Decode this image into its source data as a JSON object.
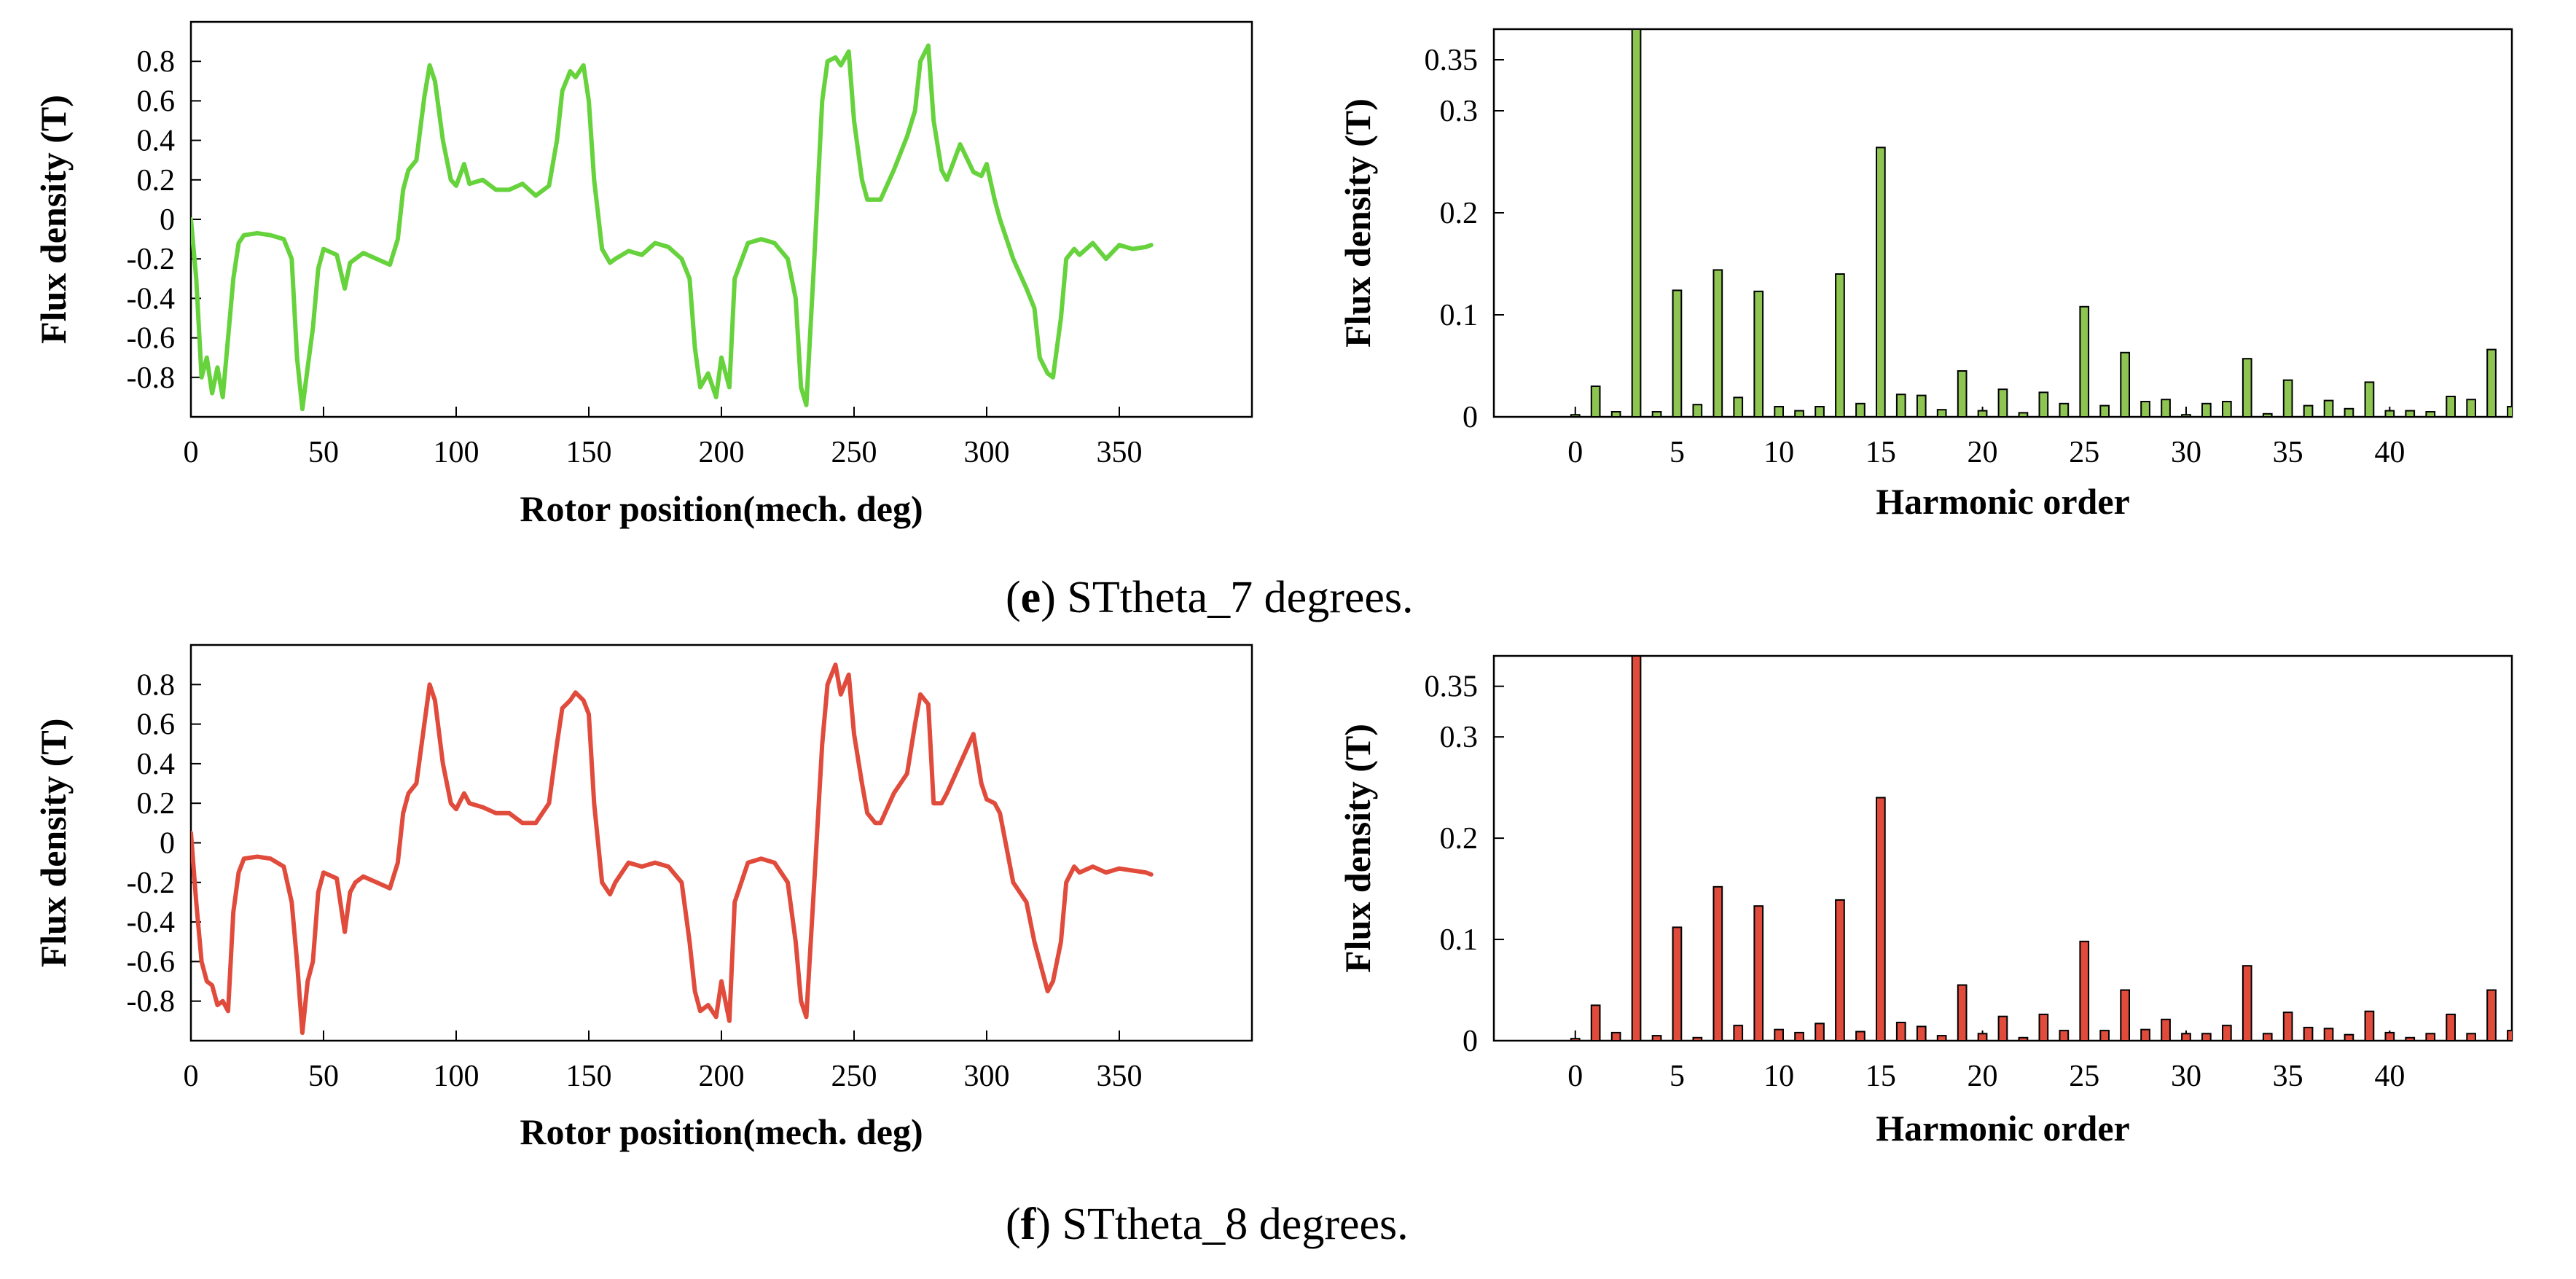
{
  "chart_data": [
    {
      "id": "e-wave",
      "type": "line",
      "title": "",
      "xlabel": "Rotor position(mech. deg)",
      "ylabel": "Flux density (T)",
      "xlim": [
        0,
        400
      ],
      "ylim": [
        -1.0,
        1.0
      ],
      "xticks": [
        0,
        50,
        100,
        150,
        200,
        250,
        300,
        350
      ],
      "yticks": [
        -0.8,
        -0.6,
        -0.4,
        -0.2,
        0,
        0.2,
        0.4,
        0.6,
        0.8
      ],
      "color": "#66d23c",
      "x": [
        0,
        2,
        4,
        6,
        8,
        10,
        12,
        14,
        16,
        18,
        20,
        25,
        30,
        35,
        38,
        40,
        42,
        44,
        46,
        48,
        50,
        55,
        58,
        60,
        62,
        65,
        70,
        75,
        78,
        80,
        82,
        85,
        88,
        90,
        92,
        95,
        98,
        100,
        103,
        105,
        110,
        115,
        120,
        125,
        130,
        135,
        138,
        140,
        143,
        145,
        148,
        150,
        152,
        155,
        158,
        160,
        165,
        170,
        175,
        180,
        185,
        188,
        190,
        192,
        195,
        198,
        200,
        203,
        205,
        210,
        215,
        220,
        225,
        228,
        230,
        232,
        235,
        238,
        240,
        243,
        245,
        248,
        250,
        253,
        255,
        258,
        260,
        265,
        270,
        273,
        275,
        278,
        280,
        283,
        285,
        290,
        295,
        298,
        300,
        303,
        305,
        310,
        315,
        318,
        320,
        323,
        325,
        328,
        330,
        333,
        335,
        340,
        345,
        350,
        355,
        360,
        362
      ],
      "y": [
        0.0,
        -0.3,
        -0.8,
        -0.7,
        -0.88,
        -0.75,
        -0.9,
        -0.6,
        -0.3,
        -0.12,
        -0.08,
        -0.07,
        -0.08,
        -0.1,
        -0.2,
        -0.7,
        -0.96,
        -0.75,
        -0.55,
        -0.25,
        -0.15,
        -0.18,
        -0.35,
        -0.22,
        -0.2,
        -0.17,
        -0.2,
        -0.23,
        -0.1,
        0.15,
        0.25,
        0.3,
        0.62,
        0.78,
        0.7,
        0.4,
        0.2,
        0.17,
        0.28,
        0.18,
        0.2,
        0.15,
        0.15,
        0.18,
        0.12,
        0.17,
        0.4,
        0.65,
        0.75,
        0.72,
        0.78,
        0.6,
        0.2,
        -0.15,
        -0.22,
        -0.2,
        -0.16,
        -0.18,
        -0.12,
        -0.14,
        -0.2,
        -0.3,
        -0.65,
        -0.85,
        -0.78,
        -0.9,
        -0.7,
        -0.85,
        -0.3,
        -0.12,
        -0.1,
        -0.12,
        -0.2,
        -0.4,
        -0.85,
        -0.94,
        -0.2,
        0.6,
        0.8,
        0.82,
        0.78,
        0.85,
        0.5,
        0.2,
        0.1,
        0.1,
        0.1,
        0.25,
        0.42,
        0.55,
        0.8,
        0.88,
        0.5,
        0.25,
        0.2,
        0.38,
        0.24,
        0.22,
        0.28,
        0.1,
        0.0,
        -0.2,
        -0.35,
        -0.45,
        -0.7,
        -0.78,
        -0.8,
        -0.5,
        -0.2,
        -0.15,
        -0.18,
        -0.12,
        -0.2,
        -0.13,
        -0.15,
        -0.14,
        -0.13
      ]
    },
    {
      "id": "e-spectrum",
      "type": "bar",
      "title": "",
      "xlabel": "Harmonic order",
      "ylabel": "Flux density (T)",
      "xlim": [
        -4,
        46
      ],
      "ylim": [
        0,
        0.38
      ],
      "xticks": [
        0,
        5,
        10,
        15,
        20,
        25,
        30,
        35,
        40
      ],
      "yticks": [
        0,
        0.1,
        0.2,
        0.3,
        0.35
      ],
      "color": "#8ec451",
      "categories": [
        0,
        1,
        2,
        3,
        4,
        5,
        6,
        7,
        8,
        9,
        10,
        11,
        12,
        13,
        14,
        15,
        16,
        17,
        18,
        19,
        20,
        21,
        22,
        23,
        24,
        25,
        26,
        27,
        28,
        29,
        30,
        31,
        32,
        33,
        34,
        35,
        36,
        37,
        38,
        39,
        40,
        41,
        42,
        43,
        44,
        45,
        46
      ],
      "values": [
        0.002,
        0.03,
        0.005,
        0.4,
        0.005,
        0.124,
        0.012,
        0.144,
        0.019,
        0.123,
        0.01,
        0.006,
        0.01,
        0.14,
        0.013,
        0.264,
        0.022,
        0.021,
        0.007,
        0.045,
        0.006,
        0.027,
        0.004,
        0.024,
        0.013,
        0.108,
        0.011,
        0.063,
        0.015,
        0.017,
        0.002,
        0.013,
        0.015,
        0.057,
        0.003,
        0.036,
        0.011,
        0.016,
        0.008,
        0.034,
        0.006,
        0.006,
        0.005,
        0.02,
        0.017,
        0.066,
        0.01
      ]
    },
    {
      "id": "f-wave",
      "type": "line",
      "title": "",
      "xlabel": "Rotor position(mech. deg)",
      "ylabel": "Flux density (T)",
      "xlim": [
        0,
        400
      ],
      "ylim": [
        -1.0,
        1.0
      ],
      "xticks": [
        0,
        50,
        100,
        150,
        200,
        250,
        300,
        350
      ],
      "yticks": [
        -0.8,
        -0.6,
        -0.4,
        -0.2,
        0,
        0.2,
        0.4,
        0.6,
        0.8
      ],
      "color": "#e04b3c",
      "x": [
        0,
        2,
        4,
        6,
        8,
        10,
        12,
        14,
        16,
        18,
        20,
        25,
        30,
        35,
        38,
        40,
        42,
        44,
        46,
        48,
        50,
        55,
        58,
        60,
        62,
        65,
        70,
        75,
        78,
        80,
        82,
        85,
        88,
        90,
        92,
        95,
        98,
        100,
        103,
        105,
        110,
        115,
        120,
        125,
        130,
        135,
        138,
        140,
        143,
        145,
        148,
        150,
        152,
        155,
        158,
        160,
        165,
        170,
        175,
        180,
        185,
        188,
        190,
        192,
        195,
        198,
        200,
        203,
        205,
        210,
        215,
        220,
        225,
        228,
        230,
        232,
        235,
        238,
        240,
        243,
        245,
        248,
        250,
        253,
        255,
        258,
        260,
        265,
        270,
        273,
        275,
        278,
        280,
        283,
        285,
        290,
        295,
        298,
        300,
        303,
        305,
        310,
        315,
        318,
        320,
        323,
        325,
        328,
        330,
        333,
        335,
        340,
        345,
        350,
        355,
        360,
        362
      ],
      "y": [
        0.05,
        -0.3,
        -0.6,
        -0.7,
        -0.72,
        -0.82,
        -0.8,
        -0.85,
        -0.35,
        -0.15,
        -0.08,
        -0.07,
        -0.08,
        -0.12,
        -0.3,
        -0.6,
        -0.96,
        -0.7,
        -0.6,
        -0.25,
        -0.15,
        -0.18,
        -0.45,
        -0.25,
        -0.2,
        -0.17,
        -0.2,
        -0.23,
        -0.1,
        0.15,
        0.25,
        0.3,
        0.6,
        0.8,
        0.72,
        0.4,
        0.2,
        0.17,
        0.25,
        0.2,
        0.18,
        0.15,
        0.15,
        0.1,
        0.1,
        0.2,
        0.5,
        0.68,
        0.72,
        0.76,
        0.72,
        0.65,
        0.2,
        -0.2,
        -0.26,
        -0.2,
        -0.1,
        -0.12,
        -0.1,
        -0.12,
        -0.2,
        -0.5,
        -0.75,
        -0.85,
        -0.82,
        -0.88,
        -0.7,
        -0.9,
        -0.3,
        -0.1,
        -0.08,
        -0.1,
        -0.2,
        -0.5,
        -0.8,
        -0.88,
        -0.2,
        0.5,
        0.8,
        0.9,
        0.75,
        0.85,
        0.55,
        0.3,
        0.15,
        0.1,
        0.1,
        0.25,
        0.35,
        0.6,
        0.75,
        0.7,
        0.2,
        0.2,
        0.25,
        0.4,
        0.55,
        0.3,
        0.22,
        0.2,
        0.15,
        -0.2,
        -0.3,
        -0.5,
        -0.6,
        -0.75,
        -0.7,
        -0.5,
        -0.2,
        -0.12,
        -0.15,
        -0.12,
        -0.15,
        -0.13,
        -0.14,
        -0.15,
        -0.16
      ]
    },
    {
      "id": "f-spectrum",
      "type": "bar",
      "title": "",
      "xlabel": "Harmonic order",
      "ylabel": "Flux density (T)",
      "xlim": [
        -4,
        46
      ],
      "ylim": [
        0,
        0.38
      ],
      "xticks": [
        0,
        5,
        10,
        15,
        20,
        25,
        30,
        35,
        40
      ],
      "yticks": [
        0,
        0.1,
        0.2,
        0.3,
        0.35
      ],
      "color": "#e04b3c",
      "categories": [
        0,
        1,
        2,
        3,
        4,
        5,
        6,
        7,
        8,
        9,
        10,
        11,
        12,
        13,
        14,
        15,
        16,
        17,
        18,
        19,
        20,
        21,
        22,
        23,
        24,
        25,
        26,
        27,
        28,
        29,
        30,
        31,
        32,
        33,
        34,
        35,
        36,
        37,
        38,
        39,
        40,
        41,
        42,
        43,
        44,
        45,
        46
      ],
      "values": [
        0.002,
        0.035,
        0.008,
        0.4,
        0.005,
        0.112,
        0.003,
        0.152,
        0.015,
        0.133,
        0.011,
        0.008,
        0.017,
        0.139,
        0.009,
        0.24,
        0.018,
        0.014,
        0.005,
        0.055,
        0.007,
        0.024,
        0.003,
        0.026,
        0.01,
        0.098,
        0.01,
        0.05,
        0.011,
        0.021,
        0.007,
        0.007,
        0.015,
        0.074,
        0.007,
        0.028,
        0.013,
        0.012,
        0.006,
        0.029,
        0.008,
        0.003,
        0.007,
        0.026,
        0.007,
        0.05,
        0.01
      ]
    }
  ],
  "captions": {
    "e": {
      "letter": "e",
      "text": "STtheta_7 degrees."
    },
    "f": {
      "letter": "f",
      "text": "STtheta_8 degrees."
    }
  }
}
